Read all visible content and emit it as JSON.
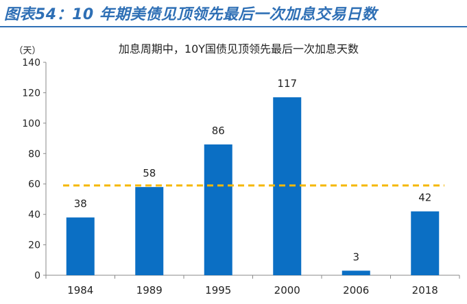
{
  "figure_title": "图表54：10 年期美债见顶领先最后一次加息交易日数",
  "chart_data": {
    "type": "bar",
    "title": "加息周期中，10Y国债见顶领先最后一次加息天数",
    "ylabel": "（天）",
    "xlabel": "",
    "categories": [
      "1984",
      "1989",
      "1995",
      "2000",
      "2006",
      "2018"
    ],
    "values": [
      38,
      58,
      86,
      117,
      3,
      42
    ],
    "value_labels": [
      "38",
      "58",
      "86",
      "117",
      "3",
      "42"
    ],
    "ylim": [
      0,
      140
    ],
    "yticks": [
      "0",
      "20",
      "40",
      "60",
      "80",
      "100",
      "120",
      "140"
    ],
    "reference_line": 59,
    "bar_color": "#0b6fc4",
    "reference_color": "#f5b800",
    "grid": false,
    "legend": "none"
  }
}
